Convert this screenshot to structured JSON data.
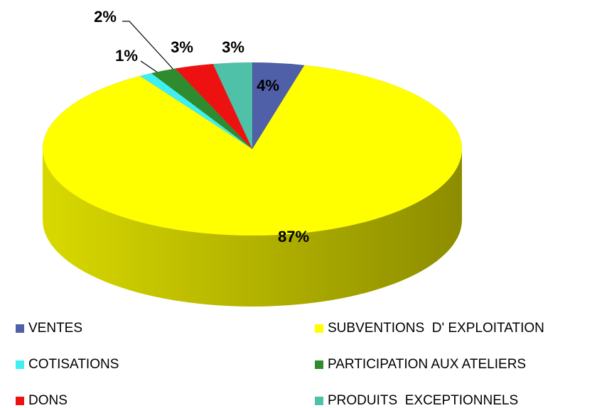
{
  "chart_data": {
    "type": "pie",
    "categories": [
      "VENTES",
      "SUBVENTIONS  D' EXPLOITATION",
      "COTISATIONS",
      "PARTICIPATION AUX ATELIERS",
      "DONS",
      "PRODUITS  EXCEPTIONNELS"
    ],
    "values": [
      4,
      87,
      1,
      2,
      3,
      3
    ],
    "value_labels": [
      "4%",
      "87%",
      "1%",
      "2%",
      "3%",
      "3%"
    ],
    "colors": [
      "#4f5fa8",
      "#ffff00",
      "#3ff0f0",
      "#2e8b2e",
      "#ee1111",
      "#4fc1a8"
    ],
    "legend": "bottom"
  }
}
